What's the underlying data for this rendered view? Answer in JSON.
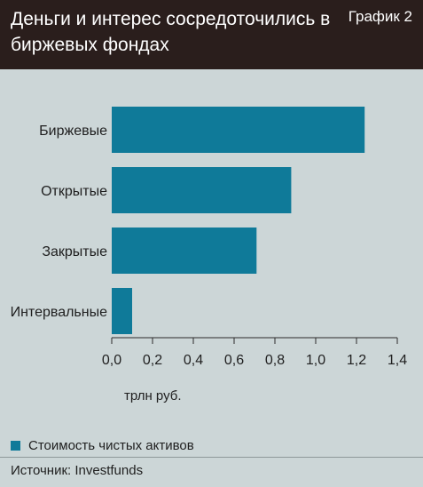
{
  "header": {
    "title": "Деньги и интерес сосредоточились в биржевых фондах",
    "tag": "График 2"
  },
  "chart_data": {
    "type": "bar",
    "orientation": "horizontal",
    "categories": [
      "Биржевые",
      "Открытые",
      "Закрытые",
      "Интервальные"
    ],
    "series": [
      {
        "name": "Стоимость чистых активов",
        "values": [
          1.24,
          0.88,
          0.71,
          0.1
        ]
      }
    ],
    "xlim": [
      0,
      1.4
    ],
    "xticks": [
      "0,0",
      "0,2",
      "0,4",
      "0,6",
      "0,8",
      "1,0",
      "1,2",
      "1,4"
    ],
    "xlabel": "трлн руб.",
    "grid": false,
    "bar_color": "#0f7a99",
    "legend_position": "bottom-left"
  },
  "footer": {
    "source": "Источник: Investfunds"
  }
}
